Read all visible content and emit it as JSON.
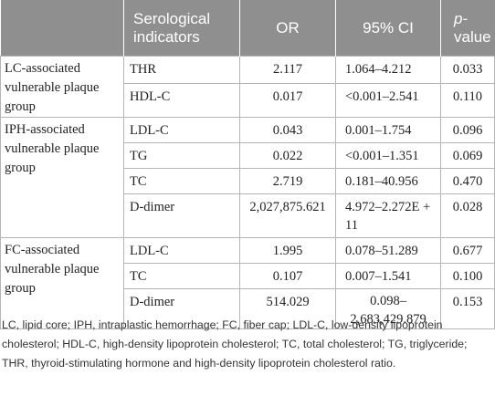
{
  "header": {
    "indicator": "Serological indicators",
    "or": "OR",
    "ci": "95% CI",
    "p_italic": "p",
    "p_rest": "-value"
  },
  "groups": [
    {
      "label": "LC-associated vulnerable plaque group",
      "rows": [
        {
          "indicator": "THR",
          "or": "2.117",
          "ci": "1.064–4.212",
          "p": "0.033"
        },
        {
          "indicator": "HDL-C",
          "or": "0.017",
          "ci": "<0.001–2.541",
          "p": "0.110"
        }
      ]
    },
    {
      "label": "IPH-associated vulnerable plaque group",
      "rows": [
        {
          "indicator": "LDL-C",
          "or": "0.043",
          "ci": "0.001–1.754",
          "p": "0.096"
        },
        {
          "indicator": "TG",
          "or": "0.022",
          "ci": "<0.001–1.351",
          "p": "0.069"
        },
        {
          "indicator": "TC",
          "or": "2.719",
          "ci": "0.181–40.956",
          "p": "0.470"
        },
        {
          "indicator": "D-dimer",
          "or": "2,027,875.621",
          "ci": "4.972–2.272E + 11",
          "p": "0.028"
        }
      ]
    },
    {
      "label": "FC-associated vulnerable plaque group",
      "rows": [
        {
          "indicator": "LDL-C",
          "or": "1.995",
          "ci": "0.078–51.289",
          "p": "0.677"
        },
        {
          "indicator": "TC",
          "or": "0.107",
          "ci": "0.007–1.541",
          "p": "0.100"
        },
        {
          "indicator": "D-dimer",
          "or": "514.029",
          "ci": "0.098–2,683,429.879",
          "p": "0.153"
        }
      ]
    }
  ],
  "footnote": "LC, lipid core; IPH, intraplastic hemorrhage; FC, fiber cap; LDL-C, low-density lipoprotein cholesterol; HDL-C, high-density lipoprotein cholesterol; TC, total cholesterol; TG, triglyceride; THR, thyroid-stimulating hormone and high-density lipoprotein cholesterol ratio."
}
